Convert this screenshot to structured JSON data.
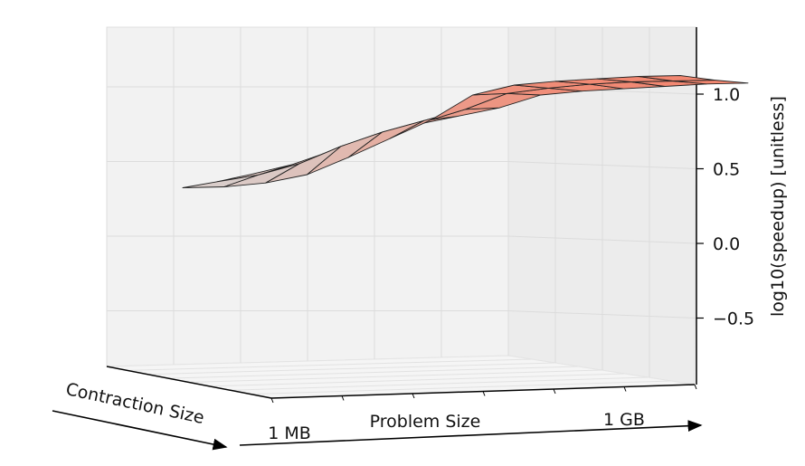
{
  "chart_data": {
    "type": "surface3d",
    "xlabel": "Problem Size",
    "ylabel": "Contraction Size",
    "zlabel": "log10(speedup) [unitless]",
    "x_tick_labels": [
      "1 MB",
      "1 GB"
    ],
    "z_ticks": [
      {
        "value": 1.0,
        "label": "1.0"
      },
      {
        "value": 0.5,
        "label": "0.5"
      },
      {
        "value": 0.0,
        "label": "0.0"
      },
      {
        "value": -0.5,
        "label": "−0.5"
      }
    ],
    "zlim": [
      -0.85,
      1.45
    ],
    "grid": true,
    "colormap": {
      "low": "#d6d6d6",
      "high": "#f4826a"
    },
    "surface_grid": {
      "x_samples": 13,
      "y_samples": 3,
      "z": [
        [
          0.3,
          0.31,
          0.34,
          0.4,
          0.52,
          0.65,
          0.78,
          0.95,
          1.02,
          1.05,
          1.07,
          1.09,
          1.1
        ],
        [
          0.37,
          0.42,
          0.5,
          0.62,
          0.72,
          0.8,
          0.88,
          0.99,
          1.03,
          1.06,
          1.08,
          1.09,
          1.1
        ],
        [
          0.45,
          0.52,
          0.62,
          0.72,
          0.8,
          0.86,
          0.92,
          1.01,
          1.04,
          1.06,
          1.08,
          1.1,
          1.11
        ]
      ]
    }
  }
}
